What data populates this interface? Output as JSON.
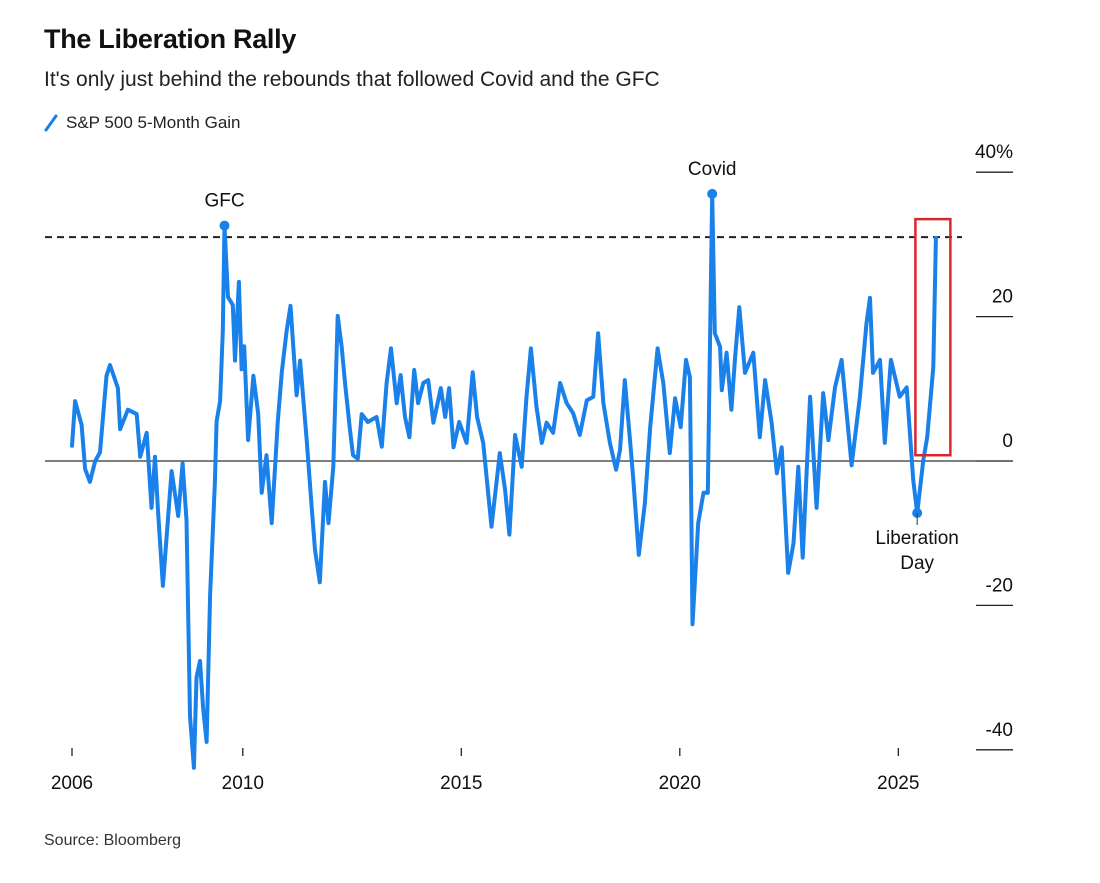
{
  "header": {
    "title": "The Liberation Rally",
    "subtitle": "It's only just behind the rebounds that followed Covid and the GFC",
    "legend_label": "S&P 500 5-Month Gain",
    "legend_icon": "line-slash-icon"
  },
  "footer": {
    "source": "Source: Bloomberg"
  },
  "colors": {
    "series": "#1a80ea",
    "highlight_box": "#d9262c",
    "zero_line": "#555555",
    "reference_line": "#222222"
  },
  "chart_data": {
    "type": "line",
    "title": "The Liberation Rally",
    "subtitle": "It's only just behind the rebounds that followed Covid and the GFC",
    "xlabel": "",
    "ylabel": "",
    "xlim": [
      2005.4,
      2026.5
    ],
    "ylim": [
      -45,
      40
    ],
    "x_ticks": [
      2006,
      2010,
      2015,
      2020,
      2025
    ],
    "x_tick_labels": [
      "2006",
      "2010",
      "2015",
      "2020",
      "2025"
    ],
    "y_ticks": [
      40,
      20,
      0,
      -20,
      -40
    ],
    "y_tick_labels": [
      "40%",
      "20",
      "0",
      "-20",
      "-40"
    ],
    "y_axis_side": "right",
    "grid": false,
    "reference_line": {
      "y": 31,
      "style": "dashed"
    },
    "highlight": {
      "x": [
        2025.3,
        2026.1
      ],
      "y": [
        0.8,
        33.5
      ]
    },
    "annotations": [
      {
        "label": "GFC",
        "x": 2009.49,
        "y": 32.6
      },
      {
        "label": "Covid",
        "x": 2020.65,
        "y": 37.0
      },
      {
        "label": "Liberation",
        "label2": "Day",
        "x": 2025.34,
        "y": -7.2
      }
    ],
    "series": [
      {
        "name": "S&P 500 5-Month Gain",
        "x": [
          2006.0,
          2006.07,
          2006.22,
          2006.3,
          2006.41,
          2006.53,
          2006.64,
          2006.79,
          2006.87,
          2007.05,
          2007.1,
          2007.28,
          2007.48,
          2007.56,
          2007.71,
          2007.82,
          2007.9,
          2007.97,
          2008.08,
          2008.28,
          2008.43,
          2008.53,
          2008.62,
          2008.7,
          2008.79,
          2008.85,
          2008.93,
          2009.0,
          2009.08,
          2009.16,
          2009.27,
          2009.31,
          2009.39,
          2009.45,
          2009.49,
          2009.57,
          2009.68,
          2009.73,
          2009.82,
          2009.88,
          2009.94,
          2010.03,
          2010.15,
          2010.26,
          2010.34,
          2010.45,
          2010.57,
          2010.71,
          2010.8,
          2010.91,
          2011.0,
          2011.14,
          2011.22,
          2011.37,
          2011.49,
          2011.56,
          2011.67,
          2011.79,
          2011.87,
          2011.98,
          2012.08,
          2012.17,
          2012.25,
          2012.36,
          2012.43,
          2012.54,
          2012.63,
          2012.77,
          2012.97,
          2013.09,
          2013.2,
          2013.3,
          2013.43,
          2013.52,
          2013.62,
          2013.72,
          2013.83,
          2013.92,
          2014.04,
          2014.15,
          2014.27,
          2014.44,
          2014.54,
          2014.63,
          2014.73,
          2014.86,
          2015.03,
          2015.17,
          2015.27,
          2015.41,
          2015.6,
          2015.79,
          2015.91,
          2016.01,
          2016.14,
          2016.29,
          2016.4,
          2016.5,
          2016.63,
          2016.75,
          2016.86,
          2017.01,
          2017.17,
          2017.32,
          2017.47,
          2017.62,
          2017.78,
          2017.93,
          2018.04,
          2018.16,
          2018.31,
          2018.45,
          2018.54,
          2018.65,
          2018.77,
          2018.84,
          2018.97,
          2019.11,
          2019.23,
          2019.4,
          2019.53,
          2019.68,
          2019.8,
          2019.93,
          2020.05,
          2020.14,
          2020.2,
          2020.33,
          2020.45,
          2020.55,
          2020.65,
          2020.71,
          2020.83,
          2020.87,
          2020.98,
          2021.09,
          2021.17,
          2021.27,
          2021.4,
          2021.59,
          2021.74,
          2021.86,
          2022.01,
          2022.13,
          2022.24,
          2022.39,
          2022.51,
          2022.62,
          2022.72,
          2022.89,
          2023.04,
          2023.19,
          2023.31,
          2023.46,
          2023.61,
          2023.84,
          2024.03,
          2024.18,
          2024.26,
          2024.33,
          2024.49,
          2024.6,
          2024.74,
          2024.94,
          2025.1,
          2025.17,
          2025.25,
          2025.34,
          2025.48,
          2025.57,
          2025.71,
          2025.77
        ],
        "y": [
          2.1,
          8.3,
          5.0,
          -1.1,
          -2.9,
          0.0,
          1.2,
          11.8,
          13.3,
          10.1,
          4.4,
          7.1,
          6.5,
          0.6,
          3.9,
          -6.5,
          0.6,
          -7.1,
          -17.3,
          -1.4,
          -7.6,
          -0.3,
          -8.2,
          -35.3,
          -42.5,
          -30.0,
          -27.7,
          -34.2,
          -38.9,
          -18.6,
          -2.9,
          5.5,
          8.3,
          18.0,
          32.6,
          22.7,
          21.6,
          13.9,
          24.8,
          12.7,
          15.9,
          2.9,
          11.8,
          6.5,
          -4.4,
          0.8,
          -8.6,
          5.5,
          12.3,
          18.0,
          21.5,
          9.1,
          13.9,
          2.9,
          -6.8,
          -12.3,
          -16.8,
          -2.9,
          -8.6,
          -0.8,
          20.1,
          15.9,
          10.7,
          4.4,
          0.8,
          0.3,
          6.5,
          5.4,
          6.1,
          2.0,
          10.8,
          15.6,
          8.0,
          11.9,
          6.1,
          3.3,
          12.6,
          8.0,
          10.8,
          11.2,
          5.3,
          10.1,
          6.1,
          10.1,
          1.9,
          5.4,
          2.5,
          12.3,
          6.1,
          2.5,
          -9.1,
          1.1,
          -4.0,
          -10.2,
          3.6,
          -0.8,
          8.9,
          15.6,
          7.5,
          2.5,
          5.3,
          3.9,
          10.8,
          8.0,
          6.6,
          3.6,
          8.4,
          8.9,
          17.7,
          8.0,
          2.5,
          -1.2,
          1.5,
          11.2,
          2.9,
          -2.2,
          -13.0,
          -5.8,
          4.7,
          15.6,
          10.8,
          1.1,
          8.7,
          4.7,
          14.0,
          11.6,
          -22.6,
          -8.6,
          -4.4,
          -4.4,
          37.0,
          17.7,
          15.8,
          9.8,
          15.0,
          7.1,
          14.0,
          21.3,
          12.2,
          15.0,
          3.3,
          11.2,
          5.3,
          -1.7,
          1.9,
          -15.5,
          -11.4,
          -0.8,
          -13.4,
          8.9,
          -6.5,
          9.4,
          2.9,
          10.2,
          14.0,
          -0.6,
          8.9,
          19.1,
          22.6,
          12.2,
          14.0,
          2.5,
          14.0,
          8.9,
          10.2,
          4.3,
          -2.6,
          -7.2,
          0.1,
          3.3,
          13.0,
          30.9
        ]
      }
    ]
  }
}
